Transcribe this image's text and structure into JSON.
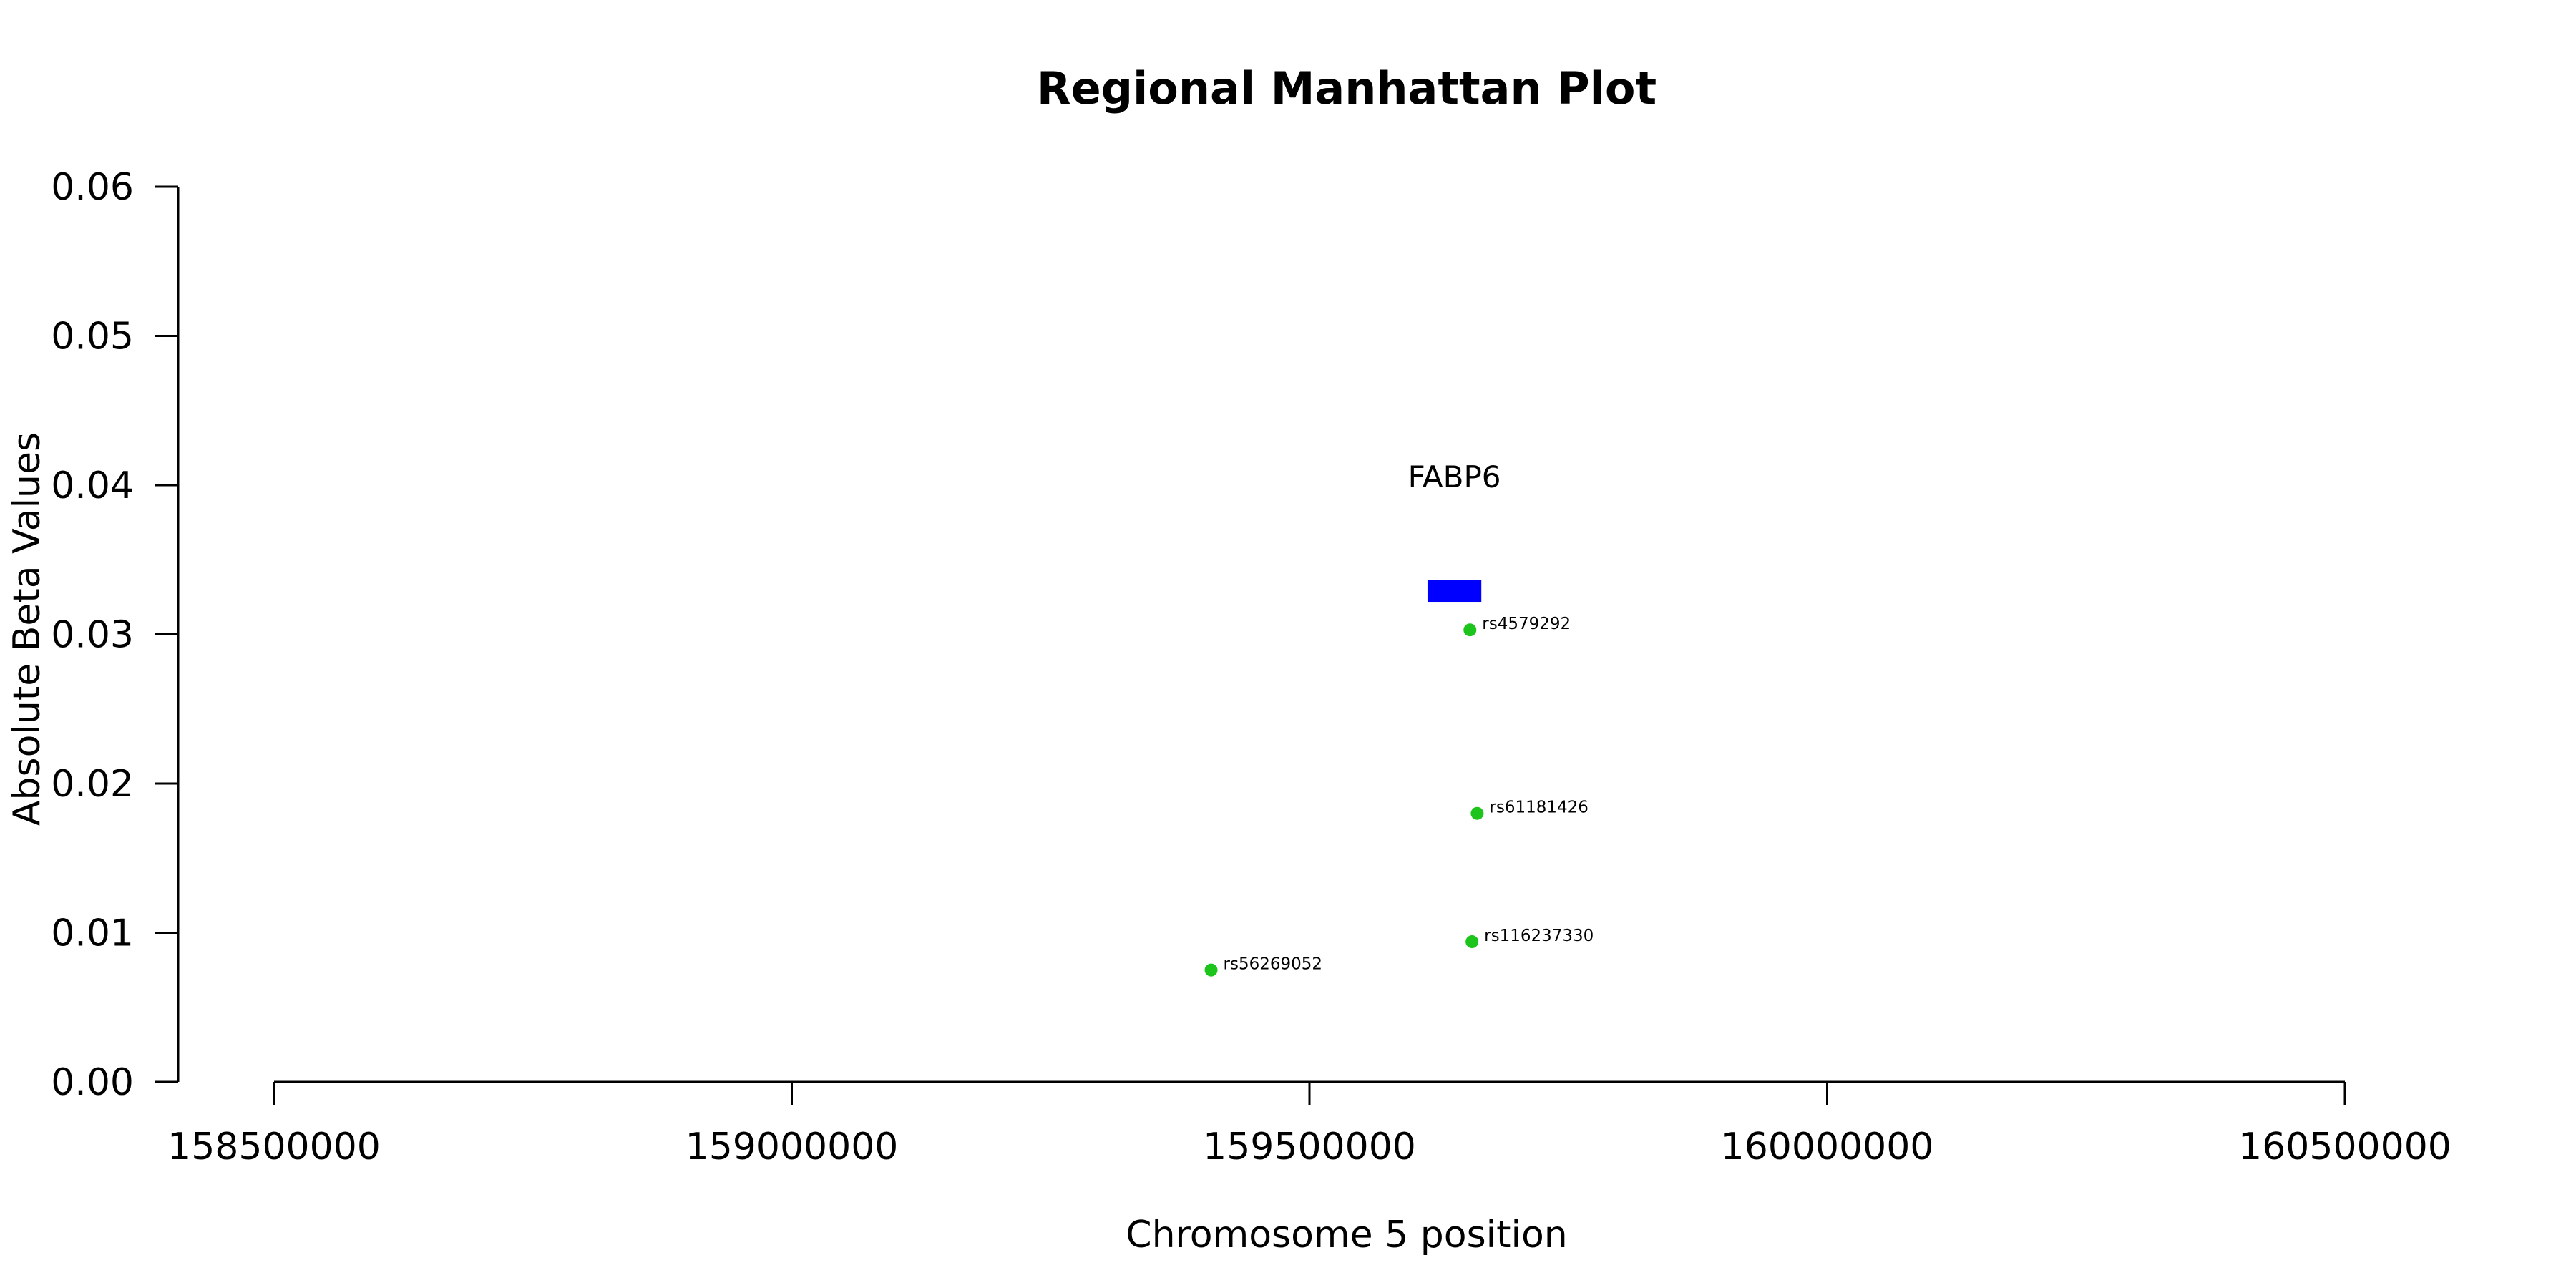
{
  "chart_data": {
    "type": "scatter",
    "title": "Regional Manhattan Plot",
    "xlabel": "Chromosome 5 position",
    "ylabel": "Absolute Beta Values",
    "xlim": [
      158500000,
      160500000
    ],
    "ylim": [
      0,
      0.06
    ],
    "x_ticks": [
      "158500000",
      "159000000",
      "159500000",
      "160000000",
      "160500000"
    ],
    "y_ticks": [
      "0.00",
      "0.01",
      "0.02",
      "0.03",
      "0.04",
      "0.05",
      "0.06"
    ],
    "grid": false,
    "point_color": "#1cc41c",
    "points": [
      {
        "label": "rs4579292",
        "x": 159655000,
        "y": 0.0303
      },
      {
        "label": "rs61181426",
        "x": 159662000,
        "y": 0.018
      },
      {
        "label": "rs116237330",
        "x": 159657000,
        "y": 0.0094
      },
      {
        "label": "rs56269052",
        "x": 159405000,
        "y": 0.0075
      }
    ],
    "genes": [
      {
        "name": "FABP6",
        "start": 159614000,
        "end": 159666000,
        "y": 0.0329,
        "color": "#0000ff"
      }
    ]
  }
}
